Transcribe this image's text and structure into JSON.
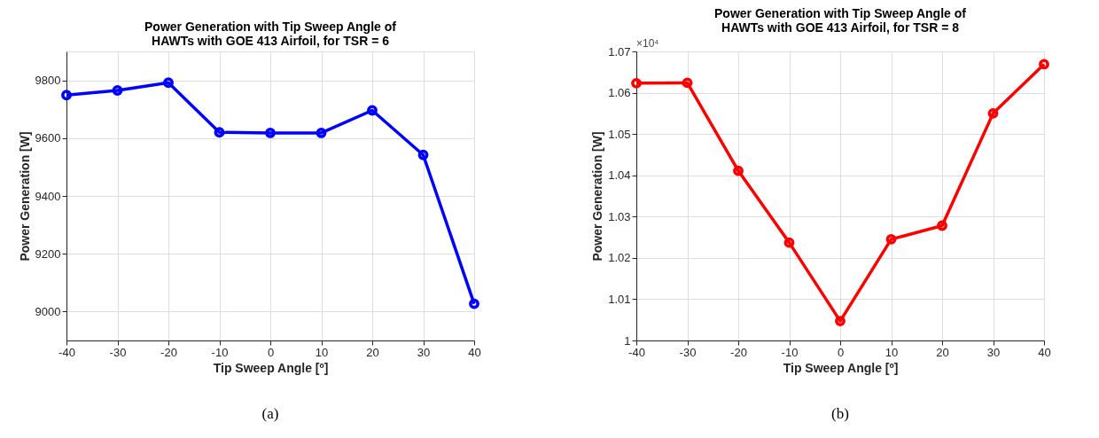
{
  "chart_data": [
    {
      "type": "line",
      "title": [
        "Power Generation with Tip Sweep Angle of",
        "HAWTs with GOE 413 Airfoil, for TSR = 6"
      ],
      "xlabel": "Tip Sweep Angle [º]",
      "ylabel": "Power Generation [W]",
      "x": [
        -40,
        -30,
        -20,
        -10,
        0,
        10,
        20,
        30,
        40
      ],
      "series": [
        {
          "color": "#0000ff",
          "values": [
            9749,
            9765,
            9792,
            9620,
            9618,
            9618,
            9696,
            9542,
            9027
          ]
        }
      ],
      "xlim": [
        -40,
        40
      ],
      "xticks": [
        -40,
        -30,
        -20,
        -10,
        0,
        10,
        20,
        30,
        40
      ],
      "ylim": [
        8900,
        9900
      ],
      "yticks": [
        9000,
        9200,
        9400,
        9600,
        9800
      ],
      "grid": true,
      "marker": "circle",
      "line_style": "solid",
      "annotations": [
        "(a)"
      ]
    },
    {
      "type": "line",
      "title": [
        "Power Generation with Tip Sweep Angle of",
        "HAWTs with GOE 413 Airfoil, for TSR = 8"
      ],
      "xlabel": "Tip Sweep Angle [º]",
      "ylabel": "Power Generation [W]",
      "x": [
        -40,
        -30,
        -20,
        -10,
        0,
        10,
        20,
        30,
        40
      ],
      "series": [
        {
          "color": "#ff0000",
          "values": [
            1.0623,
            1.0624,
            1.0411,
            1.0237,
            1.0047,
            1.0245,
            1.0278,
            1.055,
            1.0669
          ]
        }
      ],
      "xlim": [
        -40,
        40
      ],
      "xticks": [
        -40,
        -30,
        -20,
        -10,
        0,
        10,
        20,
        30,
        40
      ],
      "ylim": [
        1.0,
        1.07
      ],
      "yticks": [
        1,
        1.01,
        1.02,
        1.03,
        1.04,
        1.05,
        1.06,
        1.07
      ],
      "grid": true,
      "marker": "circle",
      "line_style": "solid",
      "annotations": [
        "×10⁴",
        "(b)"
      ]
    }
  ]
}
